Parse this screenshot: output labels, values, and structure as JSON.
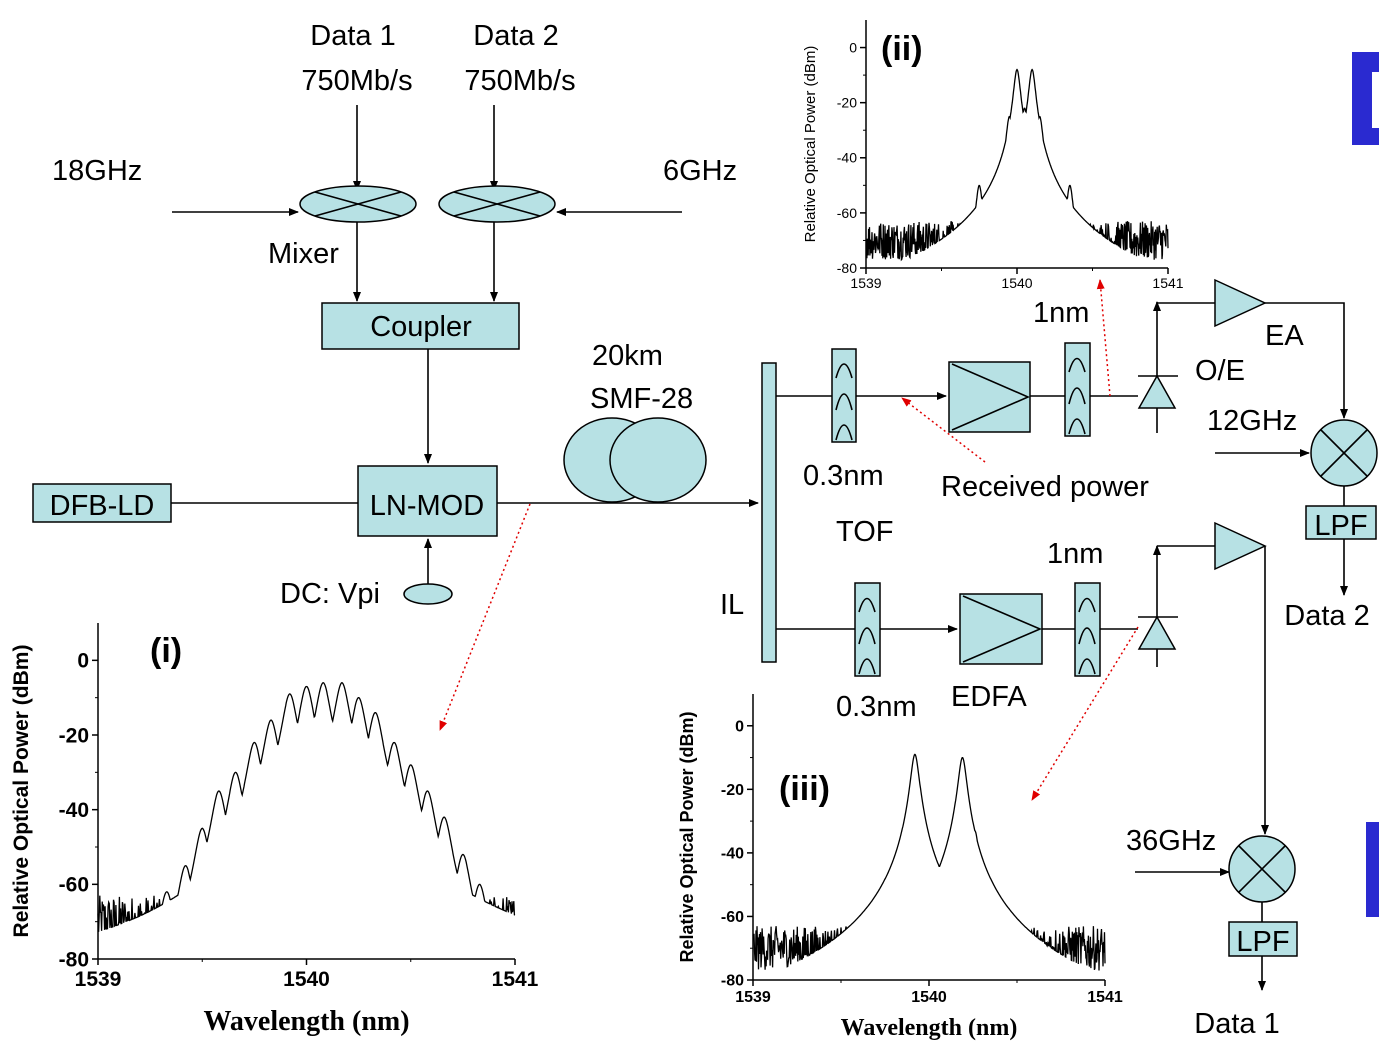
{
  "diagram": {
    "labels": {
      "data1": "Data 1",
      "data1_rate": "750Mb/s",
      "data2": "Data 2",
      "data2_rate": "750Mb/s",
      "lo1": "18GHz",
      "lo2": "6GHz",
      "mixer": "Mixer",
      "coupler": "Coupler",
      "laser": "DFB-LD",
      "modulator": "LN-MOD",
      "bias": "DC: Vpi",
      "fiber_length": "20km",
      "fiber_type": "SMF-28",
      "interleaver": "IL",
      "tof_bw_top": "0.3nm",
      "tof_bw_bottom": "0.3nm",
      "tof": "TOF",
      "received_power": "Received power",
      "edfa": "EDFA",
      "filter_top": "1nm",
      "filter_bottom": "1nm",
      "oe": "O/E",
      "ea": "EA",
      "lo_top": "12GHz",
      "lo_bottom": "36GHz",
      "lpf_top": "LPF",
      "lpf_bottom": "LPF",
      "out_top": "Data 2",
      "out_bottom": "Data 1"
    },
    "colors": {
      "component_fill": "#b7e1e4",
      "pointer": "#e00000",
      "edge_mark": "#2a2ad0"
    }
  },
  "chart_data": [
    {
      "type": "line",
      "panel": "(i)",
      "xlabel": "Wavelength (nm)",
      "ylabel": "Relative Optical Power (dBm)",
      "xlim": [
        1539,
        1541
      ],
      "ylim": [
        -80,
        10
      ],
      "xticks": [
        "1539",
        "1540",
        "1541"
      ],
      "yticks": [
        "0",
        "-20",
        "-40",
        "-60",
        "-80"
      ],
      "noise_floor": -70,
      "noise_span": [
        1539.0,
        1541.0
      ],
      "peaks": [
        [
          1539.25,
          -70
        ],
        [
          1539.33,
          -62
        ],
        [
          1539.42,
          -55
        ],
        [
          1539.5,
          -45
        ],
        [
          1539.58,
          -35
        ],
        [
          1539.66,
          -30
        ],
        [
          1539.75,
          -22
        ],
        [
          1539.83,
          -16
        ],
        [
          1539.92,
          -9
        ],
        [
          1540.0,
          -7
        ],
        [
          1540.08,
          -6
        ],
        [
          1540.17,
          -6
        ],
        [
          1540.25,
          -10
        ],
        [
          1540.33,
          -14
        ],
        [
          1540.42,
          -22
        ],
        [
          1540.5,
          -28
        ],
        [
          1540.58,
          -35
        ],
        [
          1540.66,
          -42
        ],
        [
          1540.75,
          -52
        ],
        [
          1540.83,
          -60
        ]
      ],
      "envelope_width": 0.032
    },
    {
      "type": "line",
      "panel": "(ii)",
      "xlabel": "",
      "ylabel": "Relative Optical Power (dBm)",
      "xlim": [
        1539,
        1541
      ],
      "ylim": [
        -80,
        10
      ],
      "xticks": [
        "1539",
        "1540",
        "1541"
      ],
      "yticks": [
        "0",
        "-20",
        "-40",
        "-60",
        "-80"
      ],
      "noise_floor": -70,
      "noise_span": [
        1539.0,
        1541.0
      ],
      "peaks": [
        [
          1539.65,
          -65
        ],
        [
          1539.75,
          -50
        ],
        [
          1539.95,
          -25
        ],
        [
          1540.0,
          -8
        ],
        [
          1540.05,
          -22
        ],
        [
          1540.1,
          -8
        ],
        [
          1540.15,
          -25
        ],
        [
          1540.35,
          -50
        ],
        [
          1540.45,
          -65
        ]
      ],
      "envelope_width": 0.02
    },
    {
      "type": "line",
      "panel": "(iii)",
      "xlabel": "Wavelength (nm)",
      "ylabel": "Relative Optical Power (dBm)",
      "xlim": [
        1539,
        1541
      ],
      "ylim": [
        -80,
        10
      ],
      "xticks": [
        "1539",
        "1540",
        "1541"
      ],
      "yticks": [
        "0",
        "-20",
        "-40",
        "-60",
        "-80"
      ],
      "noise_floor": -70,
      "noise_span": [
        1539.0,
        1541.0
      ],
      "peaks": [
        [
          1539.78,
          -48
        ],
        [
          1539.85,
          -33
        ],
        [
          1539.92,
          -9
        ],
        [
          1539.99,
          -35
        ],
        [
          1540.05,
          -45
        ],
        [
          1540.12,
          -35
        ],
        [
          1540.19,
          -10
        ],
        [
          1540.26,
          -33
        ],
        [
          1540.33,
          -48
        ]
      ],
      "envelope_width": 0.022
    }
  ]
}
